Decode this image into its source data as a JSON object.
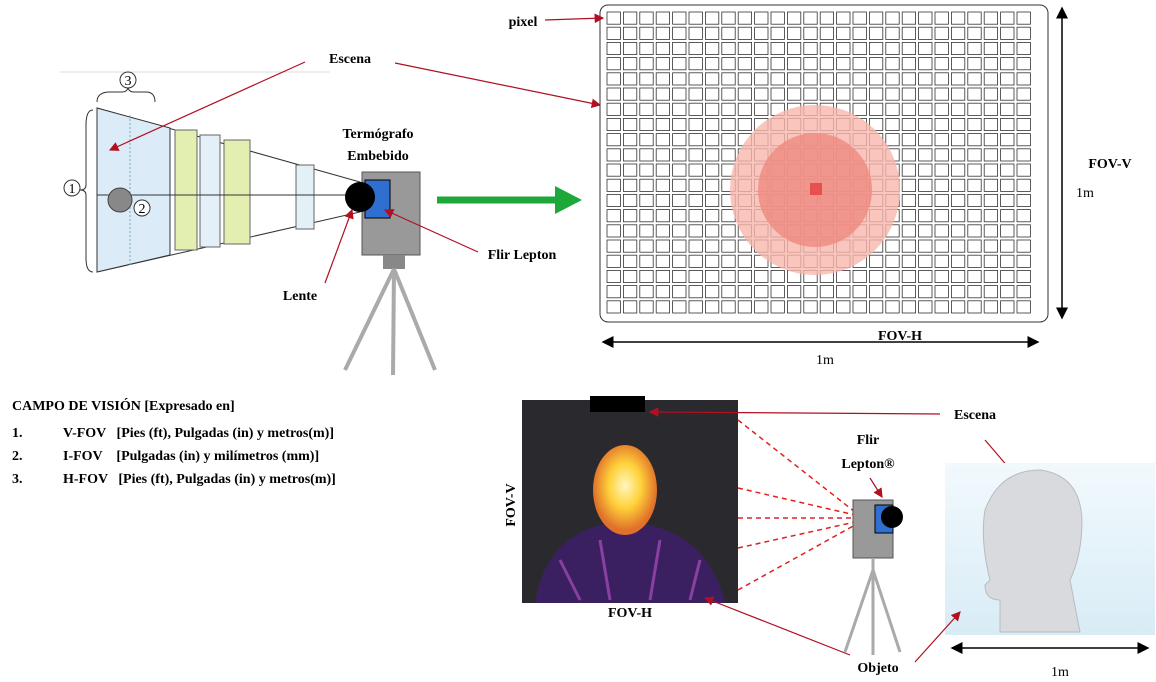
{
  "left_diagram": {
    "circled": [
      "3",
      "1",
      "2"
    ],
    "escena": "Escena",
    "termografo": [
      "Termógrafo",
      "Embebido"
    ],
    "flir_lepton": "Flir Lepton",
    "lente": "Lente"
  },
  "pixel_grid": {
    "pixel": "pixel",
    "fov_v": "FOV-V",
    "fov_v_size": "1m",
    "fov_h": "FOV-H",
    "fov_h_size": "1m"
  },
  "legend": {
    "title": "CAMPO DE VISIÓN [Expresado en]",
    "items": [
      {
        "number": "1.",
        "text": "V-FOV   [Pies (ft), Pulgadas (in) y metros(m)]"
      },
      {
        "number": "2.",
        "text": "I-FOV    [Pulgadas (in) y milímetros (mm)]"
      },
      {
        "number": "3.",
        "text": "H-FOV   [Pies (ft), Pulgadas (in) y metros(m)]"
      }
    ]
  },
  "bottom_diagram": {
    "escena": "Escena",
    "flir_lepton": [
      "Flir",
      "Lepton®"
    ],
    "fov_v": "FOV-V",
    "fov_h": "FOV-H",
    "objeto": "Objeto",
    "size": "1m"
  }
}
